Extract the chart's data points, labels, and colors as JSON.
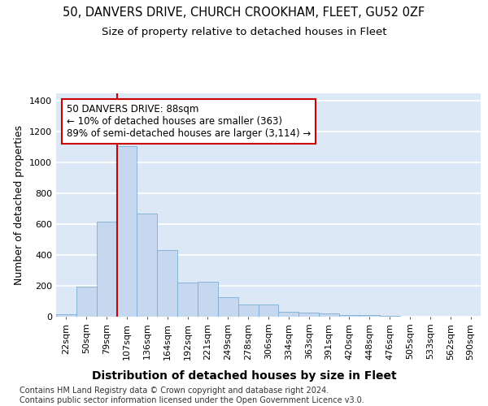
{
  "title1": "50, DANVERS DRIVE, CHURCH CROOKHAM, FLEET, GU52 0ZF",
  "title2": "Size of property relative to detached houses in Fleet",
  "xlabel": "Distribution of detached houses by size in Fleet",
  "ylabel": "Number of detached properties",
  "categories": [
    "22sqm",
    "50sqm",
    "79sqm",
    "107sqm",
    "136sqm",
    "164sqm",
    "192sqm",
    "221sqm",
    "249sqm",
    "278sqm",
    "306sqm",
    "334sqm",
    "363sqm",
    "391sqm",
    "420sqm",
    "448sqm",
    "476sqm",
    "505sqm",
    "533sqm",
    "562sqm",
    "590sqm"
  ],
  "values": [
    15,
    195,
    615,
    1105,
    670,
    430,
    220,
    225,
    125,
    78,
    78,
    30,
    25,
    20,
    12,
    8,
    5,
    0,
    0,
    0,
    0
  ],
  "bar_color": "#c5d8f0",
  "bar_edgecolor": "#7aadd4",
  "vline_x_idx": 2.5,
  "vline_color": "#cc0000",
  "annotation_text": "50 DANVERS DRIVE: 88sqm\n← 10% of detached houses are smaller (363)\n89% of semi-detached houses are larger (3,114) →",
  "annotation_box_color": "#cc0000",
  "footer": "Contains HM Land Registry data © Crown copyright and database right 2024.\nContains public sector information licensed under the Open Government Licence v3.0.",
  "ylim": [
    0,
    1450
  ],
  "yticks": [
    0,
    200,
    400,
    600,
    800,
    1000,
    1200,
    1400
  ],
  "bg_color": "#dce8f5",
  "grid_color": "#ffffff",
  "title1_fontsize": 10.5,
  "title2_fontsize": 9.5,
  "xlabel_fontsize": 10,
  "ylabel_fontsize": 9,
  "tick_fontsize": 8,
  "footer_fontsize": 7
}
